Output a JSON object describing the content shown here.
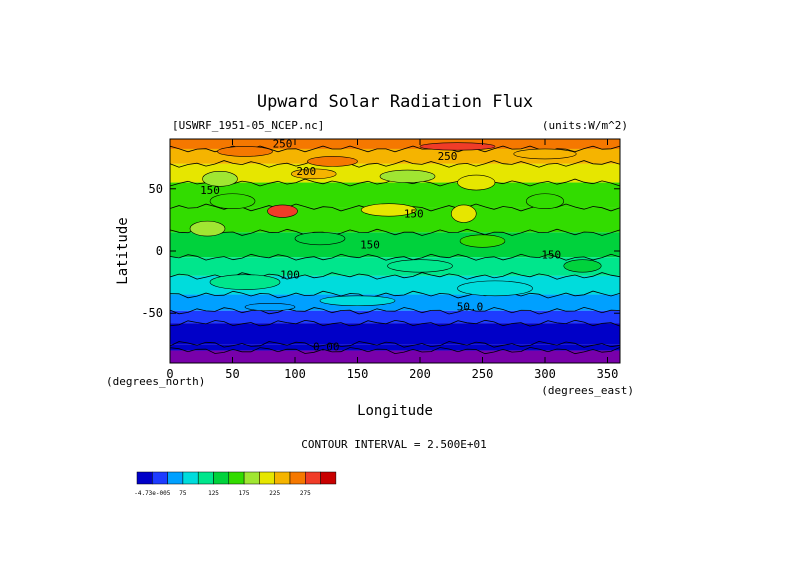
{
  "chart_data": {
    "type": "heatmap",
    "title": "Upward Solar Radiation Flux",
    "file_label": "[USWRF_1951-05_NCEP.nc]",
    "units_label": "(units:W/m^2)",
    "xlabel": "Longitude",
    "ylabel": "Latitude",
    "x_unit_label": "(degrees_east)",
    "y_unit_label": "(degrees_north)",
    "xlim": [
      0,
      360
    ],
    "ylim": [
      -90,
      90
    ],
    "x_ticks": [
      0,
      50,
      100,
      150,
      200,
      250,
      300,
      350
    ],
    "y_ticks": [
      -50,
      0,
      50
    ],
    "contour_interval_text": "CONTOUR INTERVAL = 2.500E+01",
    "contour_labels": [
      {
        "text": "250",
        "x": 90,
        "y": 83
      },
      {
        "text": "250",
        "x": 222,
        "y": 73
      },
      {
        "text": "200",
        "x": 109,
        "y": 61
      },
      {
        "text": "150",
        "x": 32,
        "y": 46
      },
      {
        "text": "150",
        "x": 195,
        "y": 27
      },
      {
        "text": "150",
        "x": 160,
        "y": 2
      },
      {
        "text": "150",
        "x": 305,
        "y": -6
      },
      {
        "text": "100",
        "x": 96,
        "y": -22
      },
      {
        "text": "50.0",
        "x": 240,
        "y": -48
      },
      {
        "text": "0.00",
        "x": 125,
        "y": -80
      }
    ],
    "colorbar": {
      "levels": [
        "-4.73e-005",
        "75",
        "125",
        "175",
        "225",
        "275"
      ],
      "colors": [
        "#0000c8",
        "#1e3cff",
        "#00a0ff",
        "#00dcdc",
        "#00e68c",
        "#00d23c",
        "#32dc00",
        "#a0e632",
        "#e6e600",
        "#f5b400",
        "#f57800",
        "#f03c28",
        "#c80000"
      ]
    },
    "lat_bands": [
      {
        "lat_max": 90,
        "lat_min": 82,
        "value": 262
      },
      {
        "lat_max": 82,
        "lat_min": 70,
        "value": 240
      },
      {
        "lat_max": 70,
        "lat_min": 55,
        "value": 200
      },
      {
        "lat_max": 55,
        "lat_min": 35,
        "value": 165
      },
      {
        "lat_max": 35,
        "lat_min": 15,
        "value": 150
      },
      {
        "lat_max": 15,
        "lat_min": -5,
        "value": 140
      },
      {
        "lat_max": -5,
        "lat_min": -20,
        "value": 112
      },
      {
        "lat_max": -20,
        "lat_min": -35,
        "value": 95
      },
      {
        "lat_max": -35,
        "lat_min": -48,
        "value": 70
      },
      {
        "lat_max": -48,
        "lat_min": -58,
        "value": 45
      },
      {
        "lat_max": -58,
        "lat_min": -75,
        "value": 20
      },
      {
        "lat_max": -75,
        "lat_min": -80,
        "value": 5
      },
      {
        "lat_max": -80,
        "lat_min": -90,
        "value": 0
      }
    ]
  }
}
